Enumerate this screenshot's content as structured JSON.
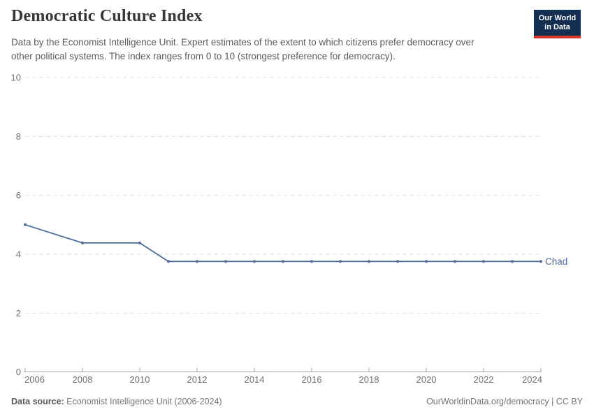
{
  "header": {
    "title": "Democratic Culture Index",
    "subtitle_lines": [
      "Data by the Economist Intelligence Unit. Expert estimates of the extent to which citizens prefer democracy over",
      "other political systems. The index ranges from 0 to 10 (strongest preference for democracy)."
    ],
    "logo_lines": [
      "Our World",
      "in Data"
    ]
  },
  "footer": {
    "source_label": "Data source:",
    "source_value": "Economist Intelligence Unit (2006-2024)",
    "credit": "OurWorldinData.org/democracy | CC BY"
  },
  "colors": {
    "accent_line": "#4C6A9C",
    "entity_label": "#4C6A9C",
    "grid": "#dcdcdc",
    "axis": "#a3a3a3",
    "tick_label": "#6f6f6f",
    "title_text": "#383636",
    "subtitle_text": "#5b5b5b",
    "footer_text": "#757575",
    "logo_bg": "#142e52",
    "logo_accent": "#d8352c"
  },
  "chart_data": {
    "type": "line",
    "title": "Democratic Culture Index",
    "xlabel": "",
    "ylabel": "",
    "xlim": [
      2006,
      2024
    ],
    "ylim": [
      0,
      10
    ],
    "yticks": [
      0,
      2,
      4,
      6,
      8,
      10
    ],
    "xticks": [
      2006,
      2008,
      2010,
      2012,
      2014,
      2016,
      2018,
      2020,
      2022,
      2024
    ],
    "grid": "horizontal-dashed",
    "legend_position": "end-of-line-label",
    "series": [
      {
        "name": "Chad",
        "color": "#4C6A9C",
        "points": [
          [
            2006,
            5.0
          ],
          [
            2008,
            4.38
          ],
          [
            2010,
            4.38
          ],
          [
            2011,
            3.75
          ],
          [
            2012,
            3.75
          ],
          [
            2013,
            3.75
          ],
          [
            2014,
            3.75
          ],
          [
            2015,
            3.75
          ],
          [
            2016,
            3.75
          ],
          [
            2017,
            3.75
          ],
          [
            2018,
            3.75
          ],
          [
            2019,
            3.75
          ],
          [
            2020,
            3.75
          ],
          [
            2021,
            3.75
          ],
          [
            2022,
            3.75
          ],
          [
            2023,
            3.75
          ],
          [
            2024,
            3.75
          ]
        ]
      }
    ]
  }
}
